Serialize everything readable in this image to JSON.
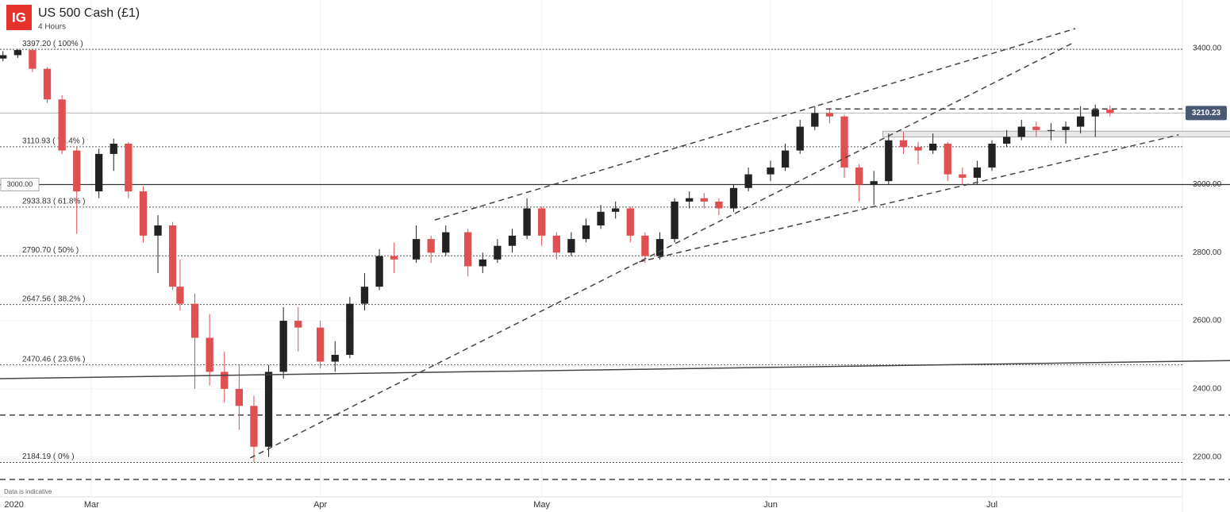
{
  "logo": "IG",
  "chart_data": {
    "type": "candlestick",
    "title": "US 500 Cash (£1)",
    "subtitle": "4 Hours",
    "footnote": "Data is indicative",
    "up_color": "#222222",
    "down_color": "#e05050",
    "xlim": [
      48.6,
      208.8
    ],
    "ylim": [
      2085,
      3542
    ],
    "xticks": [
      {
        "value": 50.5,
        "label": "2020"
      },
      {
        "value": 61,
        "label": "Mar"
      },
      {
        "value": 92,
        "label": "Apr"
      },
      {
        "value": 122,
        "label": "May"
      },
      {
        "value": 153,
        "label": "Jun"
      },
      {
        "value": 183,
        "label": "Jul"
      }
    ],
    "yticks": [
      {
        "value": 2200,
        "label": "2200.00"
      },
      {
        "value": 2400,
        "label": "2400.00"
      },
      {
        "value": 2600,
        "label": "2600.00"
      },
      {
        "value": 2800,
        "label": "2800.00"
      },
      {
        "value": 3000,
        "label": "3000.00"
      },
      {
        "value": 3400,
        "label": "3400.00"
      }
    ],
    "fib_levels": [
      {
        "value": 3397.2,
        "label": "3397.20 ( 100% )"
      },
      {
        "value": 3110.93,
        "label": "3110.93 ( 76.4% )"
      },
      {
        "value": 2933.83,
        "label": "2933.83 ( 61.8% )"
      },
      {
        "value": 2790.7,
        "label": "2790.70 ( 50% )"
      },
      {
        "value": 2647.56,
        "label": "2647.56 ( 38.2% )"
      },
      {
        "value": 2470.46,
        "label": "2470.46 ( 23.6% )"
      },
      {
        "value": 2184.19,
        "label": "2184.19 ( 0% )"
      }
    ],
    "marked_level": {
      "value": 3000,
      "label": "3000.00"
    },
    "last_price": {
      "value": 3210.23,
      "label": "3210.23"
    },
    "dashed_levels": [
      2323,
      2134
    ],
    "trendlines": [
      {
        "style": "dashed",
        "x": [
          107.5,
          194.3
        ],
        "y": [
          2896,
          3458
        ]
      },
      {
        "style": "dashed",
        "x": [
          82.5,
          193.8
        ],
        "y": [
          2197,
          3414
        ]
      },
      {
        "style": "dashed",
        "x": [
          135.2,
          208.3
        ],
        "y": [
          2773,
          3146
        ]
      },
      {
        "style": "dashed",
        "x": [
          160.5,
          208.8
        ],
        "y": [
          3222,
          3222
        ]
      },
      {
        "style": "solid",
        "x": [
          48.6,
          215.3
        ],
        "y": [
          2430,
          2483
        ]
      }
    ],
    "zones": [
      {
        "x": [
          168.2,
          215.3
        ],
        "y": [
          3140,
          3157
        ]
      }
    ],
    "x": [
      49,
      51,
      53,
      55,
      57,
      59,
      62,
      64,
      66,
      68,
      70,
      72,
      73,
      75,
      77,
      79,
      81,
      83,
      85,
      87,
      89,
      92,
      94,
      96,
      98,
      100,
      102,
      105,
      107,
      109,
      112,
      114,
      116,
      118,
      120,
      122,
      124,
      126,
      128,
      130,
      132,
      134,
      136,
      138,
      140,
      142,
      144,
      146,
      148,
      150,
      153,
      155,
      157,
      159,
      161,
      163,
      165,
      167,
      169,
      171,
      173,
      175,
      177,
      179,
      181,
      183,
      185,
      187,
      189,
      191,
      193,
      195,
      197,
      199
    ],
    "open": [
      3370,
      3380,
      3395,
      3340,
      3250,
      3100,
      2980,
      3090,
      3120,
      2980,
      2850,
      2880,
      2700,
      2650,
      2550,
      2450,
      2400,
      2350,
      2230,
      2450,
      2600,
      2580,
      2480,
      2500,
      2650,
      2700,
      2790,
      2780,
      2840,
      2800,
      2860,
      2760,
      2780,
      2820,
      2850,
      2930,
      2850,
      2800,
      2840,
      2880,
      2920,
      2930,
      2850,
      2790,
      2840,
      2950,
      2960,
      2950,
      2930,
      2990,
      3030,
      3050,
      3100,
      3170,
      3210,
      3200,
      3050,
      3000,
      3010,
      3130,
      3110,
      3100,
      3120,
      3030,
      3020,
      3050,
      3120,
      3140,
      3170,
      3160,
      3160,
      3170,
      3200,
      3220
    ],
    "high": [
      3392,
      3398,
      3398,
      3345,
      3262,
      3110,
      3105,
      3135,
      3125,
      2995,
      2910,
      2890,
      2780,
      2680,
      2620,
      2510,
      2470,
      2380,
      2470,
      2640,
      2640,
      2600,
      2540,
      2670,
      2740,
      2810,
      2830,
      2880,
      2850,
      2880,
      2870,
      2800,
      2840,
      2870,
      2960,
      2935,
      2860,
      2860,
      2900,
      2940,
      2950,
      2935,
      2860,
      2860,
      2960,
      2980,
      2975,
      2960,
      3000,
      3050,
      3070,
      3120,
      3190,
      3230,
      3225,
      3205,
      3060,
      3040,
      3150,
      3155,
      3125,
      3150,
      3125,
      3050,
      3070,
      3130,
      3160,
      3190,
      3185,
      3180,
      3185,
      3230,
      3235,
      3232
    ],
    "low": [
      3362,
      3372,
      3330,
      3240,
      3090,
      2855,
      2960,
      3040,
      2960,
      2830,
      2740,
      2690,
      2630,
      2400,
      2410,
      2360,
      2280,
      2185,
      2200,
      2430,
      2510,
      2460,
      2450,
      2490,
      2630,
      2690,
      2740,
      2770,
      2770,
      2790,
      2730,
      2740,
      2770,
      2800,
      2840,
      2820,
      2780,
      2790,
      2830,
      2870,
      2900,
      2830,
      2770,
      2780,
      2830,
      2930,
      2930,
      2910,
      2920,
      2980,
      3010,
      3040,
      3090,
      3160,
      3180,
      3020,
      2950,
      2940,
      3000,
      3090,
      3060,
      3090,
      3010,
      3000,
      3000,
      3040,
      3110,
      3130,
      3140,
      3130,
      3120,
      3150,
      3140,
      3200
    ],
    "close": [
      3380,
      3395,
      3340,
      3250,
      3100,
      2980,
      3090,
      3120,
      2980,
      2850,
      2880,
      2700,
      2650,
      2550,
      2450,
      2400,
      2350,
      2230,
      2450,
      2600,
      2580,
      2480,
      2500,
      2650,
      2700,
      2790,
      2780,
      2840,
      2800,
      2860,
      2760,
      2780,
      2820,
      2850,
      2930,
      2850,
      2800,
      2840,
      2880,
      2920,
      2930,
      2850,
      2790,
      2840,
      2950,
      2960,
      2950,
      2930,
      2990,
      3030,
      3050,
      3100,
      3170,
      3210,
      3200,
      3050,
      3000,
      3010,
      3130,
      3110,
      3100,
      3120,
      3030,
      3020,
      3050,
      3120,
      3140,
      3170,
      3160,
      3160,
      3170,
      3200,
      3220,
      3210
    ]
  }
}
